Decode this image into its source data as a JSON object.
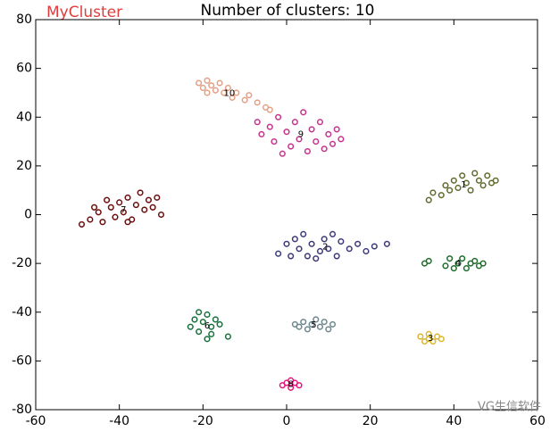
{
  "chart_data": {
    "type": "scatter",
    "title": "Number of clusters: 10",
    "brand": "MyCluster",
    "watermark": "VG生信软件",
    "xlim": [
      -60,
      60
    ],
    "ylim": [
      -80,
      80
    ],
    "xticks": [
      -60,
      -40,
      -20,
      0,
      20,
      40,
      60
    ],
    "yticks": [
      -80,
      -60,
      -40,
      -20,
      0,
      20,
      40,
      60,
      80
    ],
    "series": [
      {
        "name": "1",
        "color": "#5f6b2e",
        "x": [
          34,
          35,
          37,
          38,
          39,
          40,
          41,
          42,
          43,
          44,
          45,
          46,
          47,
          48,
          49,
          50
        ],
        "y": [
          6,
          9,
          8,
          12,
          10,
          14,
          11,
          16,
          13,
          10,
          17,
          14,
          12,
          16,
          13,
          14
        ]
      },
      {
        "name": "2",
        "color": "#3b3878",
        "x": [
          -2,
          0,
          1,
          2,
          3,
          4,
          5,
          6,
          8,
          9,
          10,
          12,
          13,
          15,
          17,
          19,
          21,
          24,
          7,
          11
        ],
        "y": [
          -16,
          -12,
          -17,
          -10,
          -14,
          -8,
          -17,
          -12,
          -15,
          -10,
          -14,
          -17,
          -11,
          -14,
          -12,
          -15,
          -13,
          -12,
          -18,
          -8
        ]
      },
      {
        "name": "3",
        "color": "#d9b62a",
        "x": [
          32,
          33,
          34,
          35,
          36,
          37,
          34
        ],
        "y": [
          -50,
          -52,
          -49,
          -52,
          -50,
          -51,
          -51
        ]
      },
      {
        "name": "4",
        "color": "#1e6b2b",
        "x": [
          33,
          34,
          38,
          39,
          40,
          41,
          42,
          43,
          44,
          45,
          46,
          47
        ],
        "y": [
          -20,
          -19,
          -21,
          -18,
          -22,
          -20,
          -18,
          -22,
          -20,
          -19,
          -21,
          -20
        ]
      },
      {
        "name": "5",
        "color": "#6b878d",
        "x": [
          2,
          3,
          4,
          5,
          6,
          7,
          8,
          9,
          10,
          11
        ],
        "y": [
          -45,
          -46,
          -44,
          -47,
          -45,
          -43,
          -46,
          -44,
          -47,
          -45
        ]
      },
      {
        "name": "6",
        "color": "#17703a",
        "x": [
          -23,
          -22,
          -21,
          -21,
          -20,
          -19,
          -19,
          -18,
          -17,
          -18,
          -16,
          -14
        ],
        "y": [
          -46,
          -43,
          -40,
          -48,
          -44,
          -51,
          -41,
          -46,
          -43,
          -49,
          -45,
          -50
        ]
      },
      {
        "name": "7",
        "color": "#6b0c0c",
        "x": [
          -49,
          -47,
          -45,
          -44,
          -42,
          -41,
          -40,
          -39,
          -38,
          -37,
          -36,
          -35,
          -34,
          -33,
          -31,
          -30,
          -43,
          -46,
          -38,
          -32
        ],
        "y": [
          -4,
          -2,
          1,
          -3,
          3,
          -1,
          5,
          1,
          7,
          -2,
          4,
          9,
          2,
          6,
          7,
          0,
          6,
          3,
          -3,
          3
        ]
      },
      {
        "name": "8",
        "color": "#e0157a",
        "x": [
          -1,
          0,
          1,
          2,
          3,
          1
        ],
        "y": [
          -70,
          -69,
          -71,
          -69,
          -70,
          -68
        ]
      },
      {
        "name": "9",
        "color": "#c7318c",
        "x": [
          -7,
          -6,
          -4,
          -3,
          -2,
          0,
          1,
          2,
          3,
          4,
          5,
          6,
          7,
          8,
          9,
          10,
          11,
          12,
          13,
          -1
        ],
        "y": [
          38,
          33,
          36,
          30,
          40,
          34,
          28,
          38,
          31,
          42,
          26,
          35,
          30,
          38,
          27,
          33,
          29,
          35,
          31,
          25
        ]
      },
      {
        "name": "10",
        "color": "#e2a086",
        "x": [
          -21,
          -20,
          -19,
          -18,
          -17,
          -16,
          -15,
          -14,
          -13,
          -12,
          -10,
          -9,
          -7,
          -5,
          -19,
          -4
        ],
        "y": [
          54,
          52,
          55,
          53,
          51,
          54,
          50,
          52,
          48,
          50,
          47,
          49,
          46,
          44,
          50,
          43
        ]
      }
    ]
  }
}
